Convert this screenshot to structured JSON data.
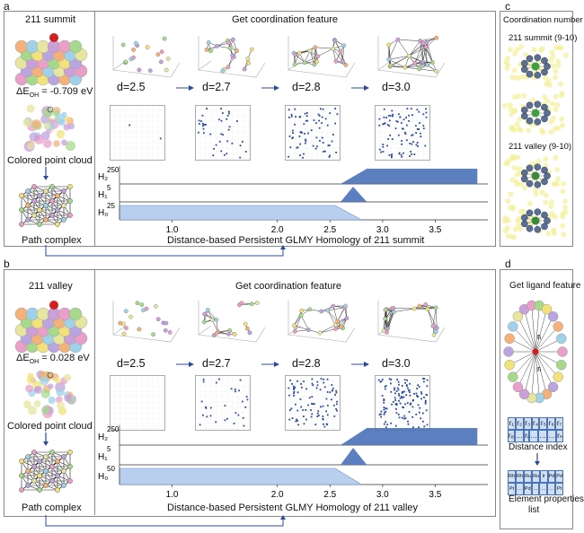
{
  "panel_a": {
    "letter": "a",
    "left_title": "211 summit",
    "energy": "ΔE",
    "energy_sub": "OH",
    "energy_value": "= -0.709 eV",
    "colored_cloud": "Colored point cloud",
    "path_complex": "Path complex",
    "title": "Get coordination feature",
    "d_labels": [
      "d=2.5",
      "d=2.7",
      "d=2.8",
      "d=3.0"
    ],
    "h_labels": [
      "H₂",
      "H₁",
      "H₀"
    ],
    "h_values": [
      "250",
      "5",
      "25"
    ],
    "x_ticks": [
      "1.0",
      "2.0",
      "2.5",
      "3.0",
      "3.5"
    ],
    "caption": "Distance-based Persistent GLMY Homology of 211 summit"
  },
  "panel_b": {
    "letter": "b",
    "left_title": "211 valley",
    "energy": "ΔE",
    "energy_sub": "OH",
    "energy_value": "= 0.028 eV",
    "colored_cloud": "Colored point cloud",
    "path_complex": "Path complex",
    "title": "Get coordination feature",
    "d_labels": [
      "d=2.5",
      "d=2.7",
      "d=2.8",
      "d=3.0"
    ],
    "h_labels": [
      "H₂",
      "H₁",
      "H₀"
    ],
    "h_values": [
      "250",
      "5",
      "50"
    ],
    "x_ticks": [
      "1.0",
      "2.0",
      "2.5",
      "3.0",
      "3.5"
    ],
    "caption": "Distance-based Persistent GLMY Homology of 211 valley"
  },
  "panel_c": {
    "letter": "c",
    "title": "Coordination number",
    "summit": "211 summit (9-10)",
    "valley": "211 valley (9-10)"
  },
  "panel_d": {
    "letter": "d",
    "title": "Get ligand feature",
    "distance_row1": [
      "r₁",
      "r₂",
      "r₃",
      "r₄",
      "r₅",
      "r₆",
      "r₇"
    ],
    "distance_row2": [
      "r₈",
      "…",
      "rᵢ",
      "…",
      "…",
      "…",
      "rₙ"
    ],
    "distance_label": "Distance index",
    "element_row1": [
      "Rh",
      "Rh",
      "Ru",
      "Ru",
      "Ir",
      "Pd",
      "Pd"
    ],
    "element_row2": [
      "Pt",
      "…",
      "Pd",
      "…",
      "…",
      "…",
      "Pt"
    ],
    "element_label_1": "Element properties",
    "element_label_2": "list",
    "ligand_label": "rᵢ"
  },
  "colors": {
    "h_fill": "#b8d0ee",
    "h_dark": "#4a72b8",
    "arrow": "#2b4a9c",
    "matrix_dot": "#2a4aa0"
  }
}
